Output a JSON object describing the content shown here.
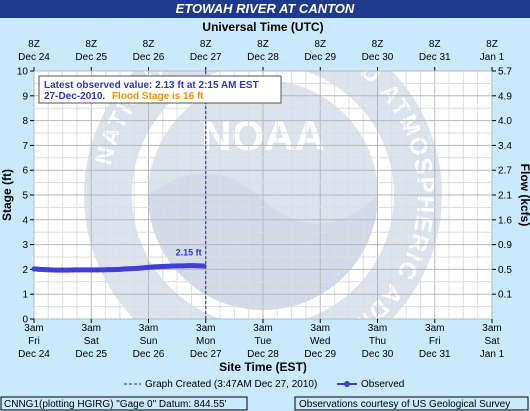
{
  "title": "ETOWAH RIVER AT CANTON",
  "chart_data": {
    "type": "line",
    "top_axis_title": "Universal Time (UTC)",
    "bottom_axis_title": "Site Time (EST)",
    "ylabel_left": "Stage (ft)",
    "ylabel_right": "Flow (kcfs)",
    "ylim": [
      0,
      10
    ],
    "y_ticks": [
      "0",
      "1",
      "2",
      "3",
      "4",
      "5",
      "6",
      "7",
      "8",
      "9",
      "10"
    ],
    "y2_ticks": [
      "0.1",
      "0.5",
      "0.9",
      "1.6",
      "2.1",
      "2.7",
      "3.4",
      "4.0",
      "4.9",
      "5.7"
    ],
    "top_ticks": [
      {
        "time": "8Z",
        "date": "Dec 24"
      },
      {
        "time": "8Z",
        "date": "Dec 25"
      },
      {
        "time": "8Z",
        "date": "Dec 26"
      },
      {
        "time": "8Z",
        "date": "Dec 27"
      },
      {
        "time": "8Z",
        "date": "Dec 28"
      },
      {
        "time": "8Z",
        "date": "Dec 29"
      },
      {
        "time": "8Z",
        "date": "Dec 30"
      },
      {
        "time": "8Z",
        "date": "Dec 31"
      },
      {
        "time": "8Z",
        "date": "Jan 1"
      }
    ],
    "bottom_ticks": [
      {
        "time": "3am",
        "day": "Fri",
        "date": "Dec 24"
      },
      {
        "time": "3am",
        "day": "Sat",
        "date": "Dec 25"
      },
      {
        "time": "3am",
        "day": "Sun",
        "date": "Dec 26"
      },
      {
        "time": "3am",
        "day": "Mon",
        "date": "Dec 27"
      },
      {
        "time": "3am",
        "day": "Tue",
        "date": "Dec 28"
      },
      {
        "time": "3am",
        "day": "Wed",
        "date": "Dec 29"
      },
      {
        "time": "3am",
        "day": "Thu",
        "date": "Dec 30"
      },
      {
        "time": "3am",
        "day": "Fri",
        "date": "Dec 31"
      },
      {
        "time": "3am",
        "day": "Sat",
        "date": "Jan 1"
      }
    ],
    "series": [
      {
        "name": "Observed",
        "x_days_from_first_tick": [
          0,
          0.1,
          0.2,
          0.3,
          0.4,
          0.5,
          0.6,
          0.7,
          0.8,
          0.9,
          1.0,
          1.1,
          1.2,
          1.3,
          1.4,
          1.5,
          1.6,
          1.7,
          1.8,
          1.9,
          2.0,
          2.1,
          2.2,
          2.3,
          2.4,
          2.5,
          2.6,
          2.7,
          2.8,
          2.9,
          2.97
        ],
        "y": [
          2.02,
          2.0,
          1.99,
          1.98,
          1.97,
          1.97,
          1.97,
          1.98,
          1.98,
          1.98,
          1.98,
          1.98,
          1.98,
          1.99,
          1.99,
          2.0,
          2.02,
          2.03,
          2.04,
          2.06,
          2.08,
          2.1,
          2.11,
          2.12,
          2.13,
          2.14,
          2.14,
          2.15,
          2.15,
          2.14,
          2.13
        ]
      }
    ],
    "data_label": "2.15 ft",
    "graph_created_index": 3,
    "info_line1": "Latest observed value: 2.13 ft at 2:15 AM EST",
    "info_line2": "27-Dec-2010.",
    "info_flood": "Flood Stage is 16 ft",
    "legend_graph_created": "Graph Created (3:47AM Dec 27, 2010)",
    "legend_observed": "Observed",
    "footer_left": "CNNG1(plotting HGIRG) \"Gage 0\" Datum:  844.55'",
    "footer_right": "Observations courtesy of US Geological Survey",
    "watermark": "NOAA",
    "watermark_ring": "NATIONAL OCEANIC AND ATMOSPHERIC ADMINISTRATION",
    "colors": {
      "series": "#3f3fd8",
      "info_text": "#2b38c8",
      "flood": "#ff8c00",
      "background": "#c8eafc",
      "title_bar": "#1d3a8f"
    }
  }
}
